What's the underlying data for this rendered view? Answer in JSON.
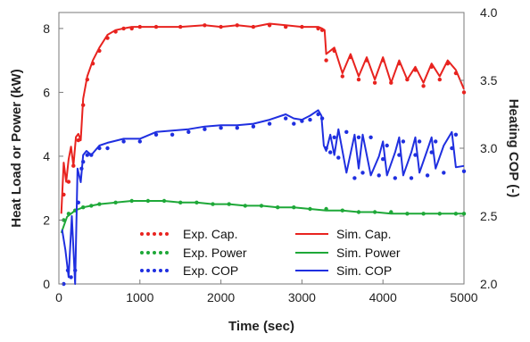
{
  "chart_data": {
    "type": "line",
    "xlabel": "Time (sec)",
    "ylabel": "Heat Load or Power (kW)",
    "y2label": "Heating COP (-)",
    "xlim": [
      0,
      5000
    ],
    "ylim": [
      0,
      8.5
    ],
    "y2lim": [
      2.0,
      4.0
    ],
    "x_ticks": [
      "0",
      "1000",
      "2000",
      "3000",
      "4000",
      "5000"
    ],
    "y_ticks": [
      "0",
      "2",
      "4",
      "6",
      "8"
    ],
    "y2_ticks": [
      "2.0",
      "2.5",
      "3.0",
      "3.5",
      "4.0"
    ],
    "grid": false,
    "legend": "bottom-center",
    "colors": {
      "cap": "#e8231f",
      "power": "#1ea838",
      "cop": "#1f2fe0"
    },
    "series": [
      {
        "name": "Exp. Cap.",
        "axis": "left",
        "style": "dotted",
        "color": "#e8231f",
        "x": [
          60,
          120,
          180,
          240,
          300,
          350,
          420,
          500,
          600,
          700,
          800,
          900,
          1000,
          1200,
          1500,
          1800,
          2000,
          2200,
          2400,
          2600,
          2800,
          3000,
          3200,
          3250,
          3300,
          3400,
          3500,
          3600,
          3700,
          3800,
          3900,
          4000,
          4100,
          4200,
          4300,
          4400,
          4500,
          4600,
          4700,
          4800,
          4900,
          5000
        ],
        "y": [
          2.8,
          3.2,
          3.7,
          4.5,
          5.6,
          6.4,
          6.9,
          7.3,
          7.7,
          7.9,
          8.0,
          8.0,
          8.05,
          8.05,
          8.05,
          8.1,
          8.05,
          8.1,
          8.05,
          8.1,
          8.05,
          8.05,
          8.0,
          7.95,
          7.0,
          7.3,
          6.5,
          7.1,
          6.4,
          7.0,
          6.3,
          7.0,
          6.3,
          6.9,
          6.4,
          6.7,
          6.2,
          6.8,
          6.4,
          6.9,
          6.6,
          6.0
        ]
      },
      {
        "name": "Sim. Cap.",
        "axis": "left",
        "style": "solid",
        "color": "#e8231f",
        "x": [
          30,
          60,
          90,
          120,
          150,
          180,
          210,
          240,
          270,
          300,
          350,
          420,
          500,
          600,
          700,
          800,
          900,
          1000,
          1200,
          1500,
          1800,
          2000,
          2200,
          2400,
          2600,
          2800,
          3000,
          3200,
          3250,
          3280,
          3300,
          3400,
          3500,
          3600,
          3700,
          3800,
          3900,
          4000,
          4100,
          4200,
          4300,
          4400,
          4500,
          4600,
          4700,
          4800,
          4900,
          5000
        ],
        "y": [
          2.2,
          3.8,
          3.2,
          3.9,
          4.3,
          3.7,
          4.6,
          4.7,
          4.5,
          5.8,
          6.5,
          7.0,
          7.4,
          7.8,
          7.95,
          8.0,
          8.05,
          8.05,
          8.05,
          8.05,
          8.1,
          8.05,
          8.1,
          8.05,
          8.15,
          8.1,
          8.05,
          8.05,
          8.0,
          7.95,
          7.2,
          7.4,
          6.6,
          7.2,
          6.5,
          7.1,
          6.4,
          7.1,
          6.3,
          7.0,
          6.4,
          6.8,
          6.3,
          6.9,
          6.5,
          7.0,
          6.7,
          6.1
        ]
      },
      {
        "name": "Exp. Power",
        "axis": "left",
        "style": "dotted",
        "color": "#1ea838",
        "x": [
          60,
          120,
          200,
          300,
          400,
          500,
          700,
          900,
          1100,
          1300,
          1500,
          1700,
          1900,
          2100,
          2300,
          2500,
          2700,
          2900,
          3100,
          3300,
          3500,
          3700,
          3900,
          4100,
          4300,
          4500,
          4700,
          4900,
          5000
        ],
        "y": [
          2.0,
          2.2,
          2.3,
          2.4,
          2.45,
          2.5,
          2.55,
          2.6,
          2.6,
          2.6,
          2.55,
          2.55,
          2.5,
          2.5,
          2.45,
          2.45,
          2.4,
          2.4,
          2.35,
          2.35,
          2.3,
          2.25,
          2.25,
          2.25,
          2.2,
          2.2,
          2.2,
          2.2,
          2.2
        ]
      },
      {
        "name": "Sim. Power",
        "axis": "left",
        "style": "solid",
        "color": "#1ea838",
        "x": [
          30,
          100,
          200,
          300,
          400,
          500,
          700,
          900,
          1100,
          1300,
          1500,
          1700,
          1900,
          2100,
          2300,
          2500,
          2700,
          2900,
          3100,
          3300,
          3500,
          3700,
          3900,
          4100,
          4300,
          4500,
          4700,
          4900,
          5000
        ],
        "y": [
          1.6,
          2.1,
          2.3,
          2.4,
          2.45,
          2.5,
          2.55,
          2.6,
          2.6,
          2.6,
          2.55,
          2.55,
          2.5,
          2.5,
          2.45,
          2.45,
          2.4,
          2.4,
          2.35,
          2.3,
          2.3,
          2.25,
          2.25,
          2.2,
          2.2,
          2.2,
          2.2,
          2.2,
          2.2
        ]
      },
      {
        "name": "Exp. COP",
        "axis": "right",
        "style": "dotted",
        "color": "#1f2fe0",
        "x": [
          60,
          110,
          150,
          200,
          240,
          280,
          300,
          350,
          400,
          500,
          600,
          800,
          1000,
          1200,
          1400,
          1600,
          1800,
          2000,
          2200,
          2400,
          2600,
          2800,
          2900,
          3000,
          3100,
          3200,
          3250,
          3300,
          3350,
          3400,
          3450,
          3550,
          3650,
          3700,
          3750,
          3850,
          3950,
          4000,
          4050,
          4150,
          4200,
          4250,
          4350,
          4400,
          4450,
          4550,
          4600,
          4650,
          4750,
          4850,
          4900,
          5000
        ],
        "y": [
          2.0,
          2.1,
          2.05,
          2.1,
          2.6,
          2.85,
          2.9,
          2.95,
          2.95,
          3.0,
          3.0,
          3.05,
          3.05,
          3.1,
          3.1,
          3.12,
          3.14,
          3.15,
          3.15,
          3.16,
          3.18,
          3.22,
          3.18,
          3.2,
          3.21,
          3.25,
          3.22,
          3.0,
          2.97,
          3.08,
          2.93,
          3.12,
          2.78,
          3.08,
          2.82,
          3.08,
          2.8,
          2.92,
          3.02,
          2.78,
          2.95,
          3.05,
          2.78,
          2.95,
          3.05,
          2.8,
          2.97,
          3.05,
          2.82,
          3.0,
          3.1,
          2.83
        ]
      },
      {
        "name": "Sim. COP",
        "axis": "right",
        "style": "solid",
        "color": "#1f2fe0",
        "x": [
          40,
          80,
          120,
          160,
          200,
          230,
          270,
          300,
          340,
          400,
          500,
          600,
          800,
          1000,
          1200,
          1400,
          1600,
          1800,
          2000,
          2200,
          2400,
          2600,
          2800,
          2900,
          3000,
          3100,
          3200,
          3240,
          3270,
          3300,
          3350,
          3400,
          3450,
          3550,
          3650,
          3700,
          3750,
          3850,
          3950,
          4000,
          4050,
          4150,
          4200,
          4250,
          4350,
          4400,
          4450,
          4550,
          4600,
          4650,
          4750,
          4850,
          4900,
          5000
        ],
        "y": [
          2.4,
          2.25,
          2.05,
          2.5,
          2.0,
          2.85,
          2.75,
          2.95,
          2.98,
          2.95,
          3.02,
          3.04,
          3.07,
          3.07,
          3.12,
          3.13,
          3.14,
          3.16,
          3.17,
          3.17,
          3.18,
          3.21,
          3.25,
          3.22,
          3.21,
          3.24,
          3.28,
          3.24,
          3.02,
          2.98,
          3.1,
          2.95,
          3.14,
          2.82,
          3.1,
          2.85,
          3.1,
          2.8,
          2.94,
          3.05,
          2.8,
          2.97,
          3.08,
          2.8,
          2.97,
          3.08,
          2.82,
          2.99,
          3.08,
          2.85,
          3.02,
          3.12,
          2.86,
          2.87
        ]
      }
    ]
  }
}
